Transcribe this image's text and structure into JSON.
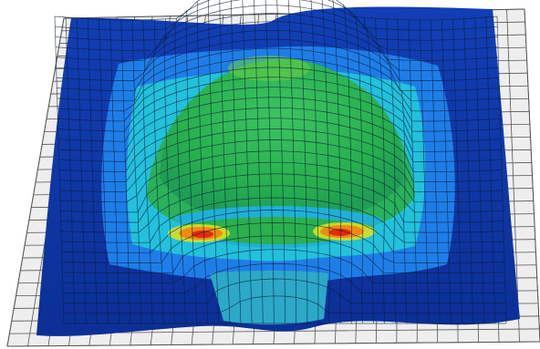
{
  "figure": {
    "kind": "finite-element contour plot of a deformed sheet mesh with a central dome",
    "colors": {
      "background": "#ffffff",
      "reference_grid_fill": "#eeeeee",
      "reference_grid_line": "#555555",
      "mesh_line": "#0b1d3a",
      "contour_scale": [
        "#0b2a8c",
        "#1446c8",
        "#1e7ee8",
        "#20c0e0",
        "#2ec060",
        "#7ad040",
        "#f0e020",
        "#f08010",
        "#e02010"
      ]
    }
  }
}
